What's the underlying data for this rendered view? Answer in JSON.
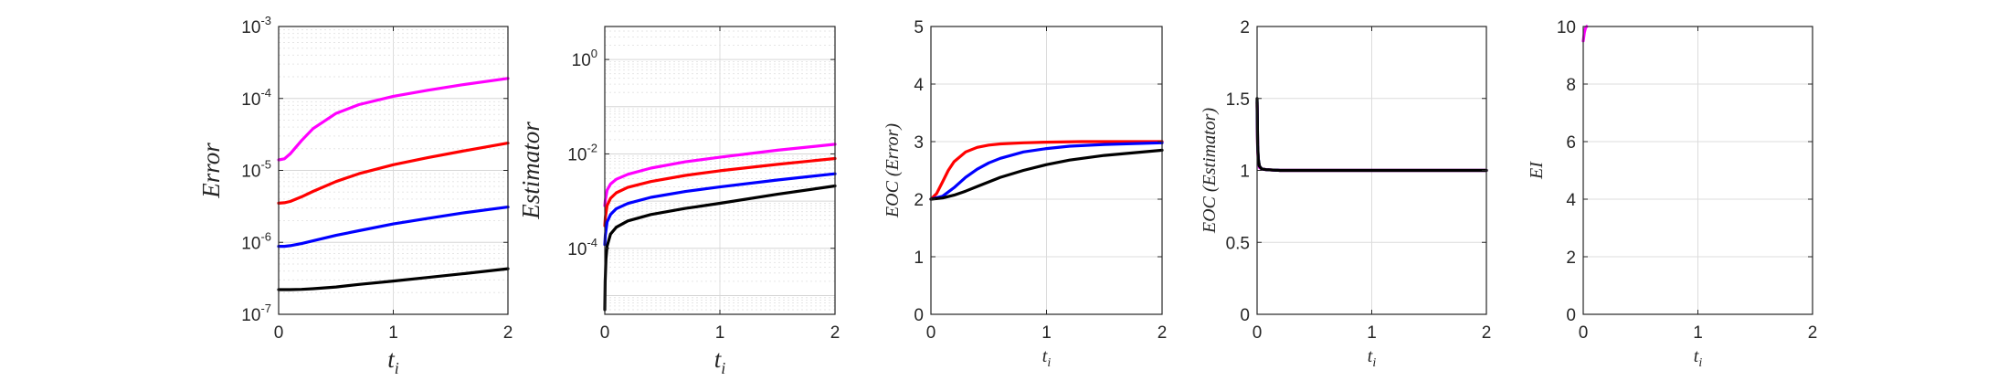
{
  "chart_data": [
    {
      "type": "line",
      "ylabel": "Error",
      "xlabel": "t",
      "xlabel_sub": "i",
      "x_scale": "linear",
      "y_scale": "log",
      "xlim": [
        0,
        2
      ],
      "ylim": [
        1e-07,
        0.001
      ],
      "x_ticks": [
        "0",
        "1",
        "2"
      ],
      "y_ticks": [
        {
          "base": "10",
          "exp": "-7"
        },
        {
          "base": "10",
          "exp": "-6"
        },
        {
          "base": "10",
          "exp": "-5"
        },
        {
          "base": "10",
          "exp": "-4"
        },
        {
          "base": "10",
          "exp": "-3"
        }
      ],
      "grid": true,
      "series": [
        {
          "color": "#ff00ff",
          "x": [
            0,
            0.05,
            0.1,
            0.2,
            0.3,
            0.5,
            0.7,
            1.0,
            1.3,
            1.6,
            2.0
          ],
          "y": [
            1.4e-05,
            1.45e-05,
            1.7e-05,
            2.6e-05,
            3.8e-05,
            6.2e-05,
            8.2e-05,
            0.000107,
            0.00013,
            0.000155,
            0.00019
          ]
        },
        {
          "color": "#ff0000",
          "x": [
            0,
            0.05,
            0.1,
            0.2,
            0.3,
            0.5,
            0.7,
            1.0,
            1.3,
            1.6,
            2.0
          ],
          "y": [
            3.5e-06,
            3.55e-06,
            3.7e-06,
            4.3e-06,
            5.1e-06,
            7e-06,
            9e-06,
            1.2e-05,
            1.5e-05,
            1.85e-05,
            2.4e-05
          ]
        },
        {
          "color": "#0000ff",
          "x": [
            0,
            0.05,
            0.1,
            0.2,
            0.3,
            0.5,
            0.7,
            1.0,
            1.3,
            1.6,
            2.0
          ],
          "y": [
            8.8e-07,
            8.8e-07,
            9e-07,
            9.6e-07,
            1.05e-06,
            1.25e-06,
            1.45e-06,
            1.8e-06,
            2.15e-06,
            2.55e-06,
            3.1e-06
          ]
        },
        {
          "color": "#000000",
          "x": [
            0,
            0.1,
            0.2,
            0.3,
            0.5,
            0.7,
            1.0,
            1.3,
            1.6,
            2.0
          ],
          "y": [
            2.2e-07,
            2.2e-07,
            2.22e-07,
            2.27e-07,
            2.4e-07,
            2.6e-07,
            2.9e-07,
            3.25e-07,
            3.65e-07,
            4.3e-07
          ]
        }
      ]
    },
    {
      "type": "line",
      "ylabel": "Estimator",
      "xlabel": "t",
      "xlabel_sub": "i",
      "x_scale": "linear",
      "y_scale": "log",
      "xlim": [
        0,
        2
      ],
      "ylim": [
        4e-06,
        5
      ],
      "x_ticks": [
        "0",
        "1",
        "2"
      ],
      "y_ticks": [
        {
          "base": "10",
          "exp": "-4",
          "value": 0.0001
        },
        {
          "base": "10",
          "exp": "-2",
          "value": 0.01
        },
        {
          "base": "10",
          "exp": "0",
          "value": 1
        }
      ],
      "grid": true,
      "series": [
        {
          "color": "#ff00ff",
          "x": [
            0.0,
            0.005,
            0.02,
            0.05,
            0.1,
            0.2,
            0.4,
            0.7,
            1.0,
            1.5,
            2.0
          ],
          "y": [
            0.0008,
            0.00105,
            0.0017,
            0.0023,
            0.0029,
            0.0037,
            0.005,
            0.0068,
            0.0085,
            0.012,
            0.016
          ]
        },
        {
          "color": "#ff0000",
          "x": [
            0.0,
            0.005,
            0.02,
            0.05,
            0.1,
            0.2,
            0.4,
            0.7,
            1.0,
            1.5,
            2.0
          ],
          "y": [
            0.0003,
            0.00045,
            0.0008,
            0.00115,
            0.0015,
            0.00195,
            0.0026,
            0.0035,
            0.0044,
            0.006,
            0.008
          ]
        },
        {
          "color": "#0000ff",
          "x": [
            0.0,
            0.005,
            0.02,
            0.05,
            0.1,
            0.2,
            0.4,
            0.7,
            1.0,
            1.5,
            2.0
          ],
          "y": [
            0.00012,
            0.00019,
            0.00036,
            0.00052,
            0.00069,
            0.00089,
            0.0012,
            0.0016,
            0.002,
            0.0028,
            0.0038
          ]
        },
        {
          "color": "#000000",
          "x": [
            0.0,
            0.003,
            0.01,
            0.02,
            0.05,
            0.1,
            0.2,
            0.4,
            0.7,
            1.0,
            1.5,
            2.0
          ],
          "y": [
            5e-06,
            2e-05,
            6e-05,
            0.00011,
            0.0002,
            0.00028,
            0.00038,
            0.00052,
            0.0007,
            0.0009,
            0.0014,
            0.0021
          ]
        }
      ]
    },
    {
      "type": "line",
      "ylabel": "EOC (Error)",
      "xlabel": "t",
      "xlabel_sub": "i",
      "x_scale": "linear",
      "y_scale": "linear",
      "xlim": [
        0,
        2
      ],
      "ylim": [
        0,
        5
      ],
      "x_ticks": [
        "0",
        "1",
        "2"
      ],
      "y_ticks": [
        "0",
        "1",
        "2",
        "3",
        "4",
        "5"
      ],
      "grid": true,
      "series": [
        {
          "color": "#ff0000",
          "x": [
            0,
            0.05,
            0.1,
            0.15,
            0.2,
            0.3,
            0.4,
            0.5,
            0.6,
            0.8,
            1.0,
            1.3,
            1.6,
            2.0
          ],
          "y": [
            2.0,
            2.1,
            2.3,
            2.5,
            2.65,
            2.82,
            2.9,
            2.94,
            2.96,
            2.98,
            2.99,
            3.0,
            3.0,
            3.0
          ]
        },
        {
          "color": "#0000ff",
          "x": [
            0,
            0.1,
            0.2,
            0.3,
            0.4,
            0.5,
            0.6,
            0.8,
            1.0,
            1.2,
            1.5,
            2.0
          ],
          "y": [
            2.0,
            2.05,
            2.2,
            2.38,
            2.52,
            2.63,
            2.71,
            2.82,
            2.88,
            2.92,
            2.95,
            2.98
          ]
        },
        {
          "color": "#000000",
          "x": [
            0,
            0.1,
            0.2,
            0.3,
            0.4,
            0.5,
            0.6,
            0.8,
            1.0,
            1.2,
            1.5,
            2.0
          ],
          "y": [
            2.0,
            2.02,
            2.07,
            2.14,
            2.22,
            2.3,
            2.38,
            2.5,
            2.6,
            2.68,
            2.76,
            2.85
          ]
        }
      ]
    },
    {
      "type": "line",
      "ylabel": "EOC (Estimator)",
      "xlabel": "t",
      "xlabel_sub": "i",
      "x_scale": "linear",
      "y_scale": "linear",
      "xlim": [
        0,
        2
      ],
      "ylim": [
        0,
        2
      ],
      "x_ticks": [
        "0",
        "1",
        "2"
      ],
      "y_ticks": [
        "0",
        "0.5",
        "1",
        "1.5",
        "2"
      ],
      "grid": true,
      "series": [
        {
          "color": "#ff00ff",
          "x": [
            0,
            0.002,
            0.005,
            0.01,
            0.02,
            0.04,
            0.08,
            0.2,
            0.5,
            1.0,
            2.0
          ],
          "y": [
            1.45,
            1.3,
            1.15,
            1.06,
            1.02,
            1.01,
            1.005,
            1.0,
            1.0,
            1.0,
            1.0
          ]
        },
        {
          "color": "#ff0000",
          "x": [
            0,
            0.002,
            0.005,
            0.01,
            0.02,
            0.04,
            0.08,
            0.2,
            0.5,
            1.0,
            2.0
          ],
          "y": [
            1.47,
            1.32,
            1.16,
            1.07,
            1.03,
            1.01,
            1.005,
            1.0,
            1.0,
            1.0,
            1.0
          ]
        },
        {
          "color": "#0000ff",
          "x": [
            0,
            0.002,
            0.005,
            0.01,
            0.02,
            0.04,
            0.08,
            0.2,
            0.5,
            1.0,
            2.0
          ],
          "y": [
            1.48,
            1.33,
            1.17,
            1.08,
            1.03,
            1.01,
            1.005,
            1.0,
            1.0,
            1.0,
            1.0
          ]
        },
        {
          "color": "#000000",
          "x": [
            0,
            0.002,
            0.005,
            0.01,
            0.02,
            0.04,
            0.08,
            0.2,
            0.5,
            1.0,
            2.0
          ],
          "y": [
            1.5,
            1.35,
            1.18,
            1.08,
            1.03,
            1.01,
            1.005,
            1.0,
            1.0,
            1.0,
            1.0
          ]
        }
      ]
    },
    {
      "type": "line",
      "ylabel": "EI",
      "xlabel": "t",
      "xlabel_sub": "i",
      "x_scale": "linear",
      "y_scale": "linear",
      "xlim": [
        0,
        2
      ],
      "ylim": [
        0,
        10
      ],
      "x_ticks": [
        "0",
        "1",
        "2"
      ],
      "y_ticks": [
        "0",
        "2",
        "4",
        "6",
        "8",
        "10"
      ],
      "grid": true,
      "series": [
        {
          "color": "#ff00ff",
          "x": [
            0,
            0.01,
            0.02,
            0.03
          ],
          "y": [
            9.5,
            9.8,
            9.95,
            10.0
          ]
        }
      ]
    }
  ]
}
